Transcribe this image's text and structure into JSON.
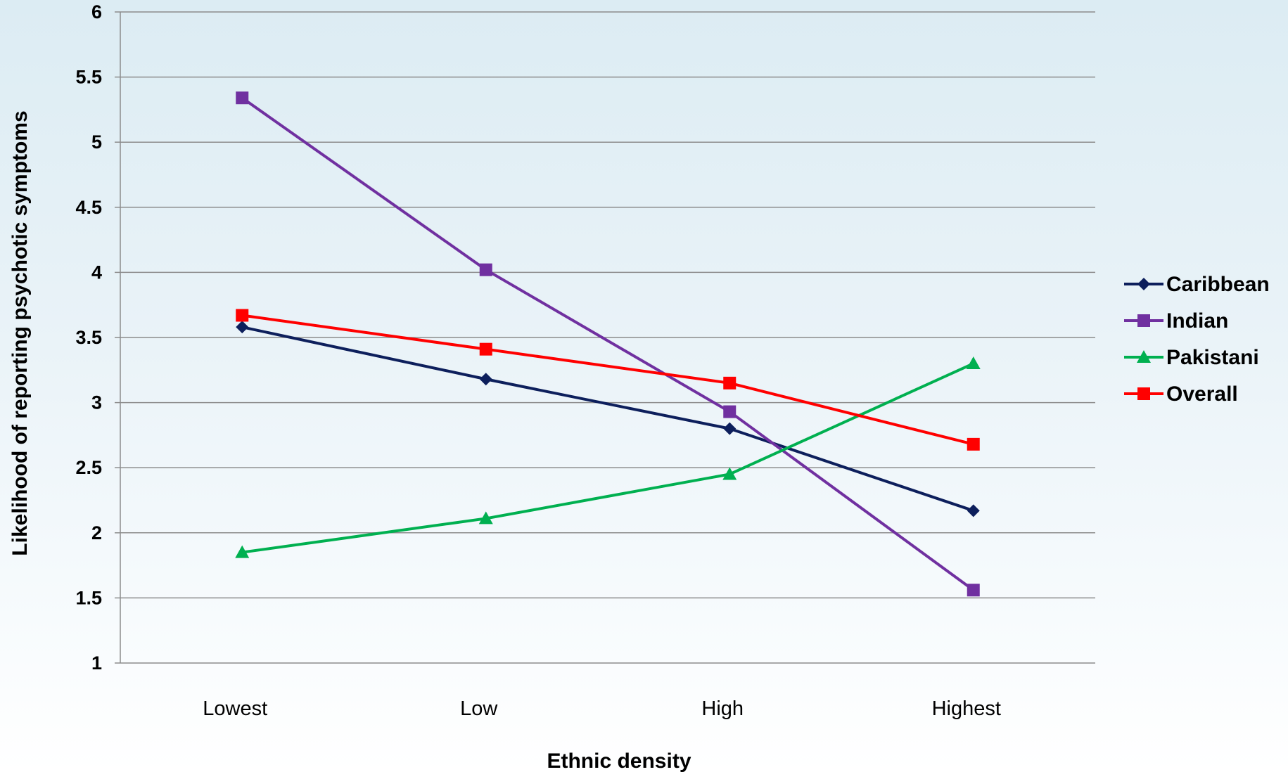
{
  "chart_data": {
    "type": "line",
    "title": "",
    "xlabel": "Ethnic density",
    "ylabel": "Likelihood of reporting psychotic symptoms",
    "categories": [
      "Lowest",
      "Low",
      "High",
      "Highest"
    ],
    "ylim": [
      1,
      6
    ],
    "yticks": [
      "1",
      "1.5",
      "2",
      "2.5",
      "3",
      "3.5",
      "4",
      "4.5",
      "5",
      "5.5",
      "6"
    ],
    "grid": true,
    "legend_position": "right",
    "series": [
      {
        "name": "Caribbean",
        "color": "#0d1f5c",
        "marker": "diamond",
        "values": [
          3.58,
          3.18,
          2.8,
          2.17
        ]
      },
      {
        "name": "Indian",
        "color": "#7030a0",
        "marker": "square",
        "values": [
          5.34,
          4.02,
          2.93,
          1.56
        ]
      },
      {
        "name": "Pakistani",
        "color": "#00b050",
        "marker": "triangle",
        "values": [
          1.85,
          2.11,
          2.45,
          3.3
        ]
      },
      {
        "name": "Overall",
        "color": "#ff0000",
        "marker": "square",
        "values": [
          3.67,
          3.41,
          3.15,
          2.68
        ]
      }
    ]
  }
}
